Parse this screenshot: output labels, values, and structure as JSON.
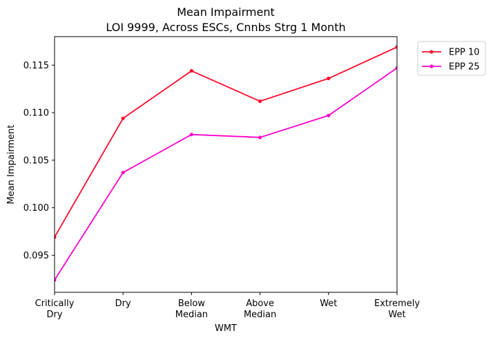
{
  "chart_data": {
    "type": "line",
    "title": "Mean Impairment",
    "subtitle": "LOI 9999, Across ESCs, Cnnbs Strg 1 Month",
    "xlabel": "WMT",
    "ylabel": "Mean Impairment",
    "categories": [
      [
        "Critically",
        "Dry"
      ],
      [
        "Dry"
      ],
      [
        "Below",
        "Median"
      ],
      [
        "Above",
        "Median"
      ],
      [
        "Wet"
      ],
      [
        "Extremely",
        "Wet"
      ]
    ],
    "ylim": [
      0.0911,
      0.118
    ],
    "yticks": [
      "0.095",
      "0.100",
      "0.105",
      "0.110",
      "0.115"
    ],
    "grid": false,
    "legend_position": "outside-top-right",
    "series": [
      {
        "name": "EPP 10",
        "color": "#ff0a2b",
        "values": [
          0.0969,
          0.1094,
          0.1144,
          0.1112,
          0.1136,
          0.1169
        ]
      },
      {
        "name": "EPP 25",
        "color": "#ff00cc",
        "values": [
          0.0924,
          0.1037,
          0.1077,
          0.1074,
          0.1097,
          0.1147
        ]
      }
    ]
  }
}
